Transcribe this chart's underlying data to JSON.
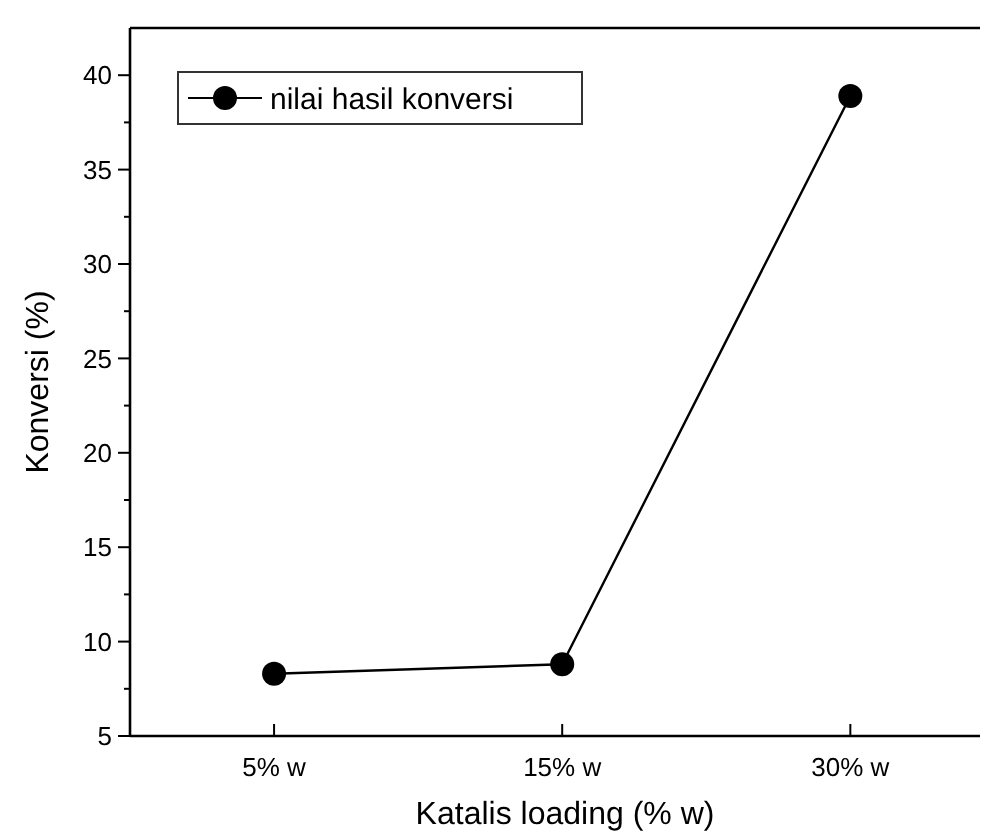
{
  "chart_data": {
    "type": "line",
    "xlabel": "Katalis loading (% w)",
    "ylabel": "Konversi (%)",
    "categories": [
      "5% w",
      "15% w",
      "30% w"
    ],
    "series": [
      {
        "name": "nilai hasil konversi",
        "color": "#000000",
        "values": [
          8.3,
          8.8,
          38.9
        ]
      }
    ],
    "ylim": [
      5,
      42.5
    ],
    "yticks": [
      5,
      {
        "value": 7.5,
        "label": null
      },
      10,
      {
        "value": 12.5,
        "label": null
      },
      15,
      {
        "value": 17.5,
        "label": null
      },
      20,
      {
        "value": 22.5,
        "label": null
      },
      25,
      {
        "value": 27.5,
        "label": null
      },
      30,
      {
        "value": 32.5,
        "label": null
      },
      35,
      {
        "value": 37.5,
        "label": null
      },
      40
    ],
    "marker": "circle",
    "line_style": "solid",
    "legend": "top left",
    "grid": false
  }
}
